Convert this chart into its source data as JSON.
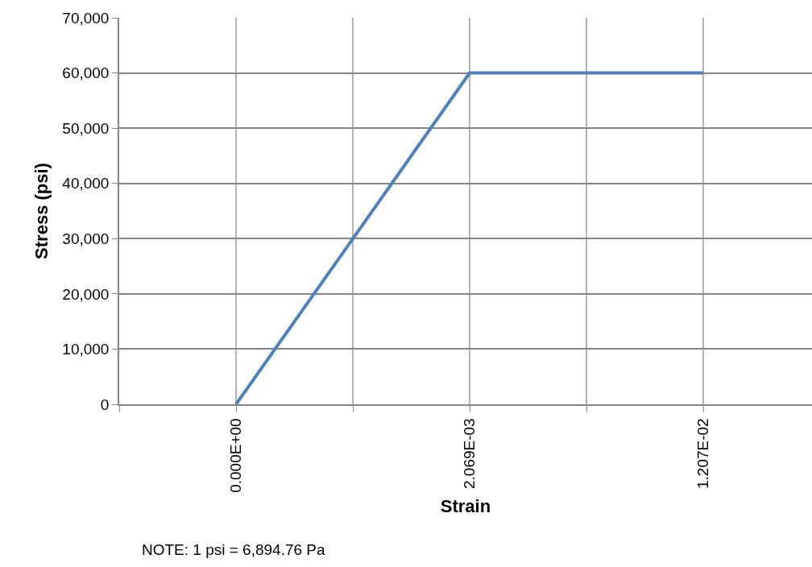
{
  "chart_data": {
    "type": "line",
    "xlabel": "Strain",
    "ylabel": "Stress (psi)",
    "categories": [
      null,
      "0.000E+00",
      null,
      "2.069E-03",
      null,
      "1.207E-02"
    ],
    "series": [
      {
        "color": "#4f81bd",
        "values": [
          null,
          0,
          30000,
          60000,
          60000,
          60000
        ]
      }
    ],
    "ylim": [
      0,
      70000
    ],
    "yticks": [
      {
        "value": 0,
        "label": "0"
      },
      {
        "value": 10000,
        "label": "10,000"
      },
      {
        "value": 20000,
        "label": "20,000"
      },
      {
        "value": 30000,
        "label": "30,000"
      },
      {
        "value": 40000,
        "label": "40,000"
      },
      {
        "value": 50000,
        "label": "50,000"
      },
      {
        "value": 60000,
        "label": "60,000"
      },
      {
        "value": 70000,
        "label": "70,000"
      }
    ],
    "grid": true,
    "marker": "none",
    "line_style": "solid",
    "annotations": [
      "NOTE: 1 psi = 6,894.76 Pa"
    ]
  }
}
